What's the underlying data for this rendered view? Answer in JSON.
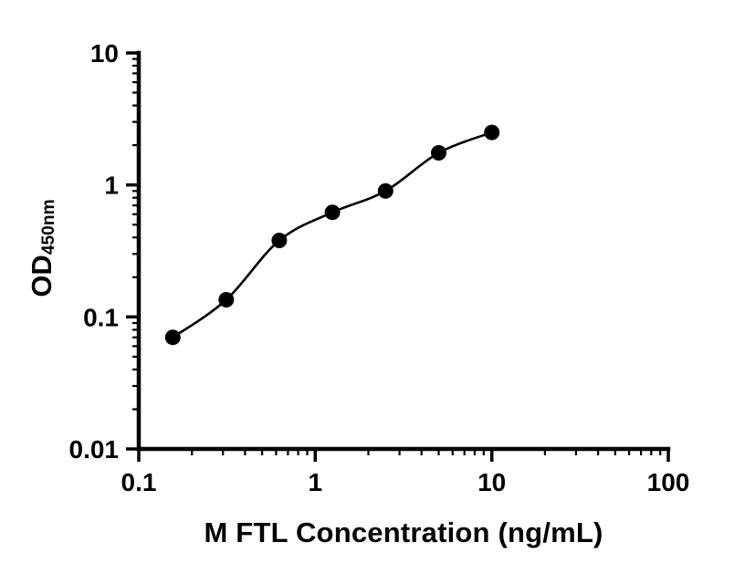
{
  "chart_data": {
    "type": "scatter",
    "title": "",
    "xlabel": "M FTL Concentration (ng/mL)",
    "ylabel_main": "OD",
    "ylabel_sub": "450nm",
    "x": [
      0.156,
      0.313,
      0.625,
      1.25,
      2.5,
      5,
      10
    ],
    "y": [
      0.07,
      0.135,
      0.38,
      0.62,
      0.9,
      1.75,
      2.5
    ],
    "fit_line": true,
    "xscale": "log",
    "yscale": "log",
    "xlim": [
      0.1,
      100
    ],
    "ylim": [
      0.01,
      10
    ],
    "x_ticks": {
      "values": [
        0.1,
        1,
        10,
        100
      ],
      "labels": [
        "0.1",
        "1",
        "10",
        "100"
      ]
    },
    "y_ticks": {
      "values": [
        0.01,
        0.1,
        1,
        10
      ],
      "labels": [
        "0.01",
        "0.1",
        "1",
        "10"
      ]
    },
    "grid": false,
    "legend": false,
    "marker_color": "#000000",
    "line_color": "#000000",
    "axis_color": "#000000",
    "background": "#ffffff"
  }
}
